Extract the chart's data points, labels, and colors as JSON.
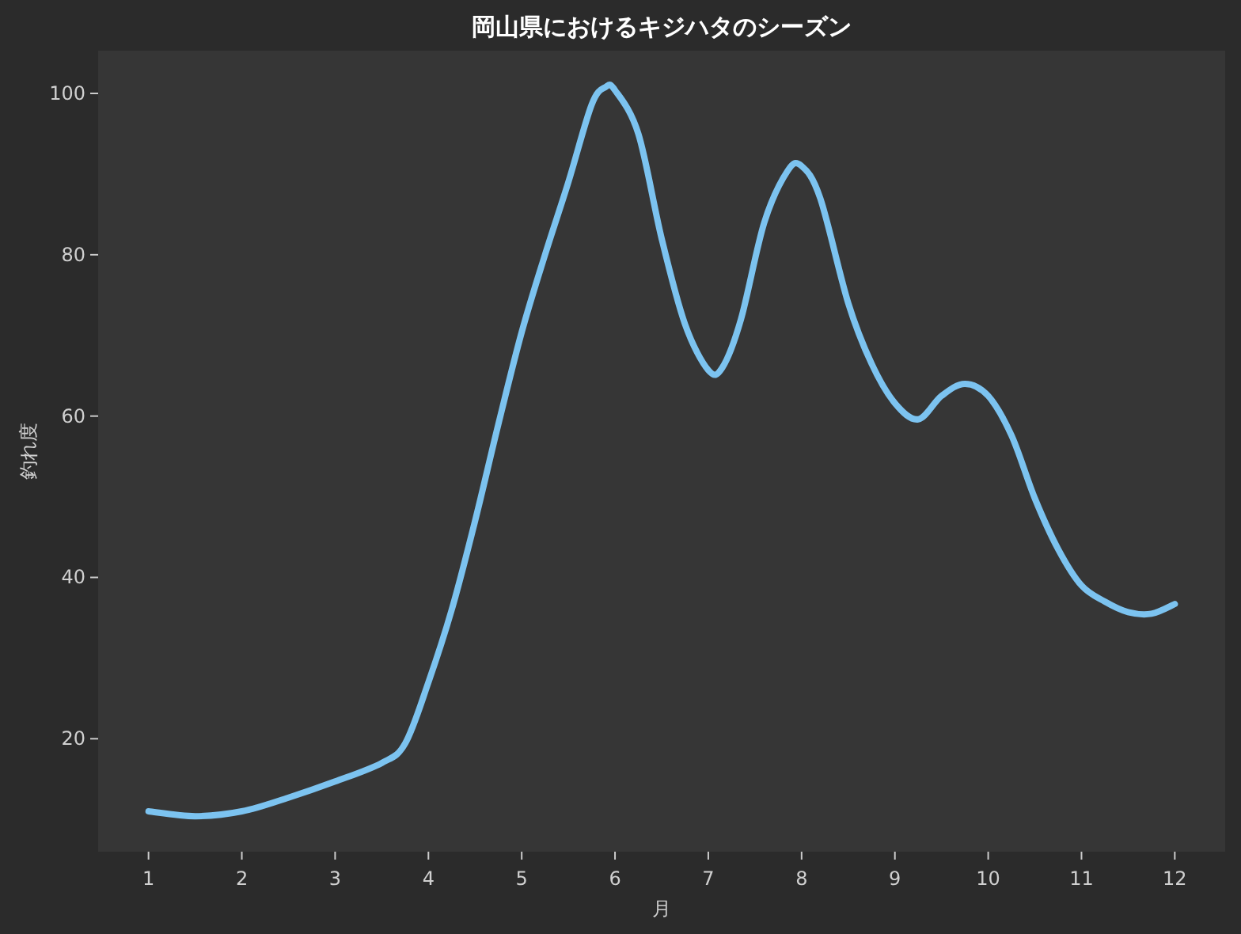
{
  "chart_data": {
    "type": "line",
    "title": "岡山県におけるキジハタのシーズン",
    "xlabel": "月",
    "ylabel": "釣れ度",
    "x": [
      1,
      1.5,
      2,
      2.5,
      3,
      3.5,
      3.75,
      4,
      4.25,
      4.5,
      4.75,
      5,
      5.25,
      5.5,
      5.75,
      5.9,
      6,
      6.25,
      6.5,
      6.75,
      7,
      7.15,
      7.35,
      7.6,
      7.85,
      8,
      8.2,
      8.5,
      8.75,
      9,
      9.25,
      9.5,
      9.75,
      10,
      10.25,
      10.5,
      10.75,
      11,
      11.25,
      11.5,
      11.75,
      12
    ],
    "series": [
      {
        "color": "#7cc3f0",
        "values": [
          11,
          10.4,
          11,
          12.7,
          14.7,
          17,
          19.4,
          27,
          36,
          47,
          59,
          70.4,
          80,
          89,
          98.6,
          100.8,
          100.4,
          95,
          82,
          71.4,
          65.7,
          66,
          72,
          84,
          90.4,
          91,
          87,
          74,
          66.5,
          61.6,
          59.6,
          62.5,
          64,
          62.5,
          57.6,
          49.8,
          43.5,
          39,
          37,
          35.7,
          35.5,
          36.7
        ]
      }
    ],
    "xlim": [
      0.46,
      12.54
    ],
    "ylim": [
      6,
      105.3
    ],
    "xticks": [
      1,
      2,
      3,
      4,
      5,
      6,
      7,
      8,
      9,
      10,
      11,
      12
    ],
    "yticks": [
      20,
      40,
      60,
      80,
      100
    ],
    "grid": false,
    "marker": "none",
    "line_style": "solid"
  }
}
